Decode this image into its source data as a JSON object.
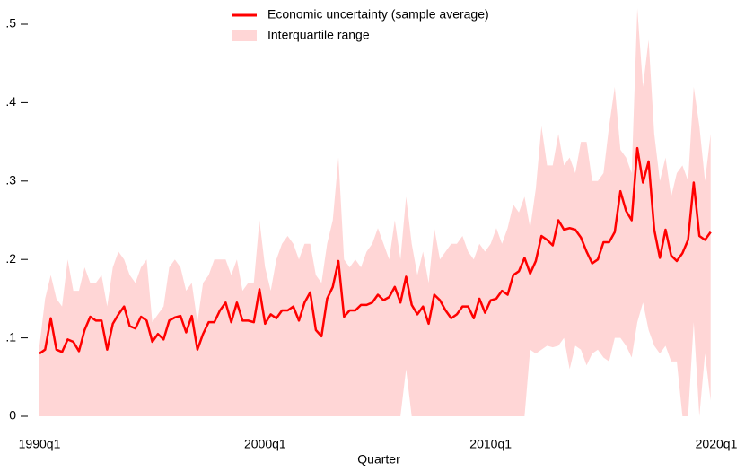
{
  "chart_data": {
    "type": "line",
    "xlabel": "Quarter",
    "x": [
      1990,
      1990.25,
      1990.5,
      1990.75,
      1991,
      1991.25,
      1991.5,
      1991.75,
      1992,
      1992.25,
      1992.5,
      1992.75,
      1993,
      1993.25,
      1993.5,
      1993.75,
      1994,
      1994.25,
      1994.5,
      1994.75,
      1995,
      1995.25,
      1995.5,
      1995.75,
      1996,
      1996.25,
      1996.5,
      1996.75,
      1997,
      1997.25,
      1997.5,
      1997.75,
      1998,
      1998.25,
      1998.5,
      1998.75,
      1999,
      1999.25,
      1999.5,
      1999.75,
      2000,
      2000.25,
      2000.5,
      2000.75,
      2001,
      2001.25,
      2001.5,
      2001.75,
      2002,
      2002.25,
      2002.5,
      2002.75,
      2003,
      2003.25,
      2003.5,
      2003.75,
      2004,
      2004.25,
      2004.5,
      2004.75,
      2005,
      2005.25,
      2005.5,
      2005.75,
      2006,
      2006.25,
      2006.5,
      2006.75,
      2007,
      2007.25,
      2007.5,
      2007.75,
      2008,
      2008.25,
      2008.5,
      2008.75,
      2009,
      2009.25,
      2009.5,
      2009.75,
      2010,
      2010.25,
      2010.5,
      2010.75,
      2011,
      2011.25,
      2011.5,
      2011.75,
      2012,
      2012.25,
      2012.5,
      2012.75,
      2013,
      2013.25,
      2013.5,
      2013.75,
      2014,
      2014.25,
      2014.5,
      2014.75,
      2015,
      2015.25,
      2015.5,
      2015.75,
      2016,
      2016.25,
      2016.5,
      2016.75,
      2017,
      2017.25,
      2017.5,
      2017.75,
      2018,
      2018.25,
      2018.5,
      2018.75,
      2019,
      2019.25,
      2019.5,
      2019.75
    ],
    "series": [
      {
        "name": "Economic uncertainty (sample average)",
        "color": "#ff0000",
        "values": [
          0.08,
          0.085,
          0.125,
          0.085,
          0.082,
          0.098,
          0.095,
          0.083,
          0.11,
          0.127,
          0.122,
          0.122,
          0.085,
          0.118,
          0.13,
          0.14,
          0.115,
          0.112,
          0.127,
          0.122,
          0.095,
          0.105,
          0.098,
          0.122,
          0.126,
          0.128,
          0.107,
          0.128,
          0.085,
          0.105,
          0.12,
          0.12,
          0.135,
          0.145,
          0.12,
          0.145,
          0.122,
          0.122,
          0.12,
          0.162,
          0.118,
          0.13,
          0.125,
          0.135,
          0.135,
          0.14,
          0.122,
          0.145,
          0.158,
          0.11,
          0.102,
          0.15,
          0.165,
          0.198,
          0.127,
          0.135,
          0.135,
          0.142,
          0.142,
          0.145,
          0.155,
          0.148,
          0.152,
          0.165,
          0.145,
          0.178,
          0.142,
          0.13,
          0.14,
          0.118,
          0.155,
          0.148,
          0.135,
          0.125,
          0.13,
          0.14,
          0.14,
          0.125,
          0.15,
          0.132,
          0.148,
          0.15,
          0.16,
          0.155,
          0.18,
          0.185,
          0.202,
          0.182,
          0.198,
          0.23,
          0.225,
          0.218,
          0.25,
          0.238,
          0.24,
          0.238,
          0.228,
          0.21,
          0.195,
          0.2,
          0.222,
          0.222,
          0.235,
          0.287,
          0.262,
          0.25,
          0.342,
          0.298,
          0.325,
          0.238,
          0.202,
          0.238,
          0.205,
          0.198,
          0.208,
          0.225,
          0.298,
          0.23,
          0.225,
          0.235
        ]
      },
      {
        "name": "Interquartile range",
        "color": "#ffd6d6",
        "low": [
          0,
          0,
          0,
          0,
          0,
          0,
          0,
          0,
          0,
          0,
          0,
          0,
          0,
          0,
          0,
          0,
          0,
          0,
          0,
          0,
          0,
          0,
          0,
          0,
          0,
          0,
          0,
          0,
          0,
          0,
          0,
          0,
          0,
          0,
          0,
          0,
          0,
          0,
          0,
          0,
          0,
          0,
          0,
          0,
          0,
          0,
          0,
          0,
          0,
          0,
          0,
          0,
          0,
          0,
          0,
          0,
          0,
          0,
          0,
          0,
          0,
          0,
          0,
          0,
          0,
          0.06,
          0,
          0,
          0,
          0,
          0,
          0,
          0,
          0,
          0,
          0,
          0,
          0,
          0,
          0,
          0,
          0,
          0,
          0,
          0,
          0,
          0,
          0.085,
          0.08,
          0.085,
          0.09,
          0.088,
          0.09,
          0.1,
          0.06,
          0.09,
          0.085,
          0.065,
          0.08,
          0.085,
          0.075,
          0.07,
          0.1,
          0.1,
          0.09,
          0.075,
          0.12,
          0.145,
          0.11,
          0.09,
          0.08,
          0.09,
          0.07,
          0.07,
          0,
          0,
          0.12,
          0,
          0.08,
          0.02
        ],
        "high": [
          0.09,
          0.15,
          0.18,
          0.15,
          0.14,
          0.2,
          0.16,
          0.16,
          0.19,
          0.17,
          0.17,
          0.18,
          0.14,
          0.19,
          0.21,
          0.2,
          0.18,
          0.17,
          0.19,
          0.2,
          0.12,
          0.13,
          0.14,
          0.19,
          0.2,
          0.19,
          0.16,
          0.17,
          0.12,
          0.17,
          0.18,
          0.2,
          0.2,
          0.2,
          0.18,
          0.2,
          0.16,
          0.17,
          0.17,
          0.25,
          0.19,
          0.16,
          0.2,
          0.22,
          0.23,
          0.22,
          0.2,
          0.22,
          0.22,
          0.18,
          0.17,
          0.22,
          0.25,
          0.33,
          0.2,
          0.19,
          0.2,
          0.19,
          0.21,
          0.22,
          0.24,
          0.22,
          0.2,
          0.25,
          0.2,
          0.28,
          0.22,
          0.18,
          0.21,
          0.17,
          0.24,
          0.2,
          0.21,
          0.22,
          0.22,
          0.23,
          0.21,
          0.2,
          0.22,
          0.21,
          0.22,
          0.24,
          0.22,
          0.24,
          0.27,
          0.26,
          0.28,
          0.24,
          0.29,
          0.37,
          0.32,
          0.32,
          0.36,
          0.32,
          0.33,
          0.31,
          0.35,
          0.35,
          0.3,
          0.3,
          0.31,
          0.37,
          0.42,
          0.34,
          0.33,
          0.31,
          0.52,
          0.42,
          0.48,
          0.36,
          0.3,
          0.33,
          0.28,
          0.31,
          0.32,
          0.3,
          0.42,
          0.37,
          0.3,
          0.36
        ]
      }
    ],
    "xlim": [
      1990,
      2020
    ],
    "xticks": [
      {
        "value": 1990,
        "label": "1990q1"
      },
      {
        "value": 2000,
        "label": "2000q1"
      },
      {
        "value": 2010,
        "label": "2010q1"
      },
      {
        "value": 2020,
        "label": "2020q1"
      }
    ],
    "ylim": [
      0,
      0.52
    ],
    "yticks": [
      0,
      {
        "value": 0.1,
        "label": ".1"
      },
      {
        "value": 0.2,
        "label": ".2"
      },
      {
        "value": 0.3,
        "label": ".3"
      },
      {
        "value": 0.4,
        "label": ".4"
      },
      {
        "value": 0.5,
        "label": ".5"
      }
    ],
    "legend": "top"
  }
}
